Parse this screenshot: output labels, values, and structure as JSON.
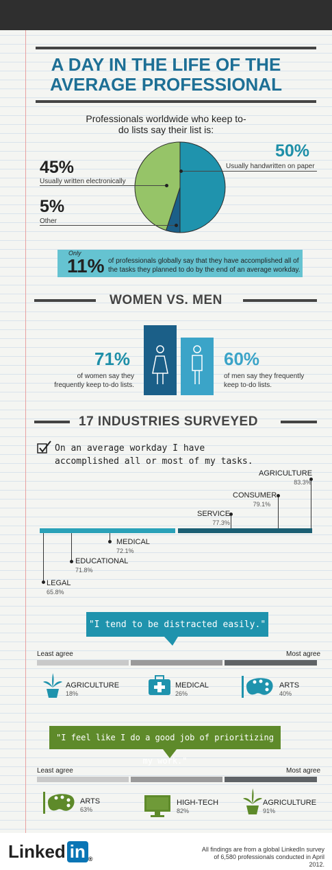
{
  "title": "A DAY IN THE LIFE OF THE AVERAGE PROFESSIONAL",
  "pie": {
    "intro": "Professionals worldwide who keep to-do lists say their list is:",
    "slices": [
      {
        "pct": "50%",
        "label": "Usually handwritten on paper",
        "value": 50,
        "color": "#1f93ad"
      },
      {
        "pct": "45%",
        "label": "Usually written electronically",
        "value": 45,
        "color": "#96c468"
      },
      {
        "pct": "5%",
        "label": "Other",
        "value": 5,
        "color": "#1b5f88"
      }
    ]
  },
  "stat11": {
    "only": "Only",
    "pct": "11%",
    "text": "of professionals globally say that they have accomplished all of the tasks they planned to do by the end of an average workday."
  },
  "gender": {
    "heading": "WOMEN VS. MEN",
    "women_pct": "71%",
    "women_text": "of women say they frequently keep to-do lists.",
    "women_value": 71,
    "men_pct": "60%",
    "men_text": "of men say they frequently keep to-do lists.",
    "men_value": 60
  },
  "industries": {
    "heading": "17 INDUSTRIES SURVEYED",
    "statement": "On an average workday I have accomplished all or most of my tasks.",
    "items": [
      {
        "name": "AGRICULTURE",
        "value": "83.3%"
      },
      {
        "name": "CONSUMER",
        "value": "79.1%"
      },
      {
        "name": "SERVICE",
        "value": "77.3%"
      },
      {
        "name": "MEDICAL",
        "value": "72.1%"
      },
      {
        "name": "EDUCATIONAL",
        "value": "71.8%"
      },
      {
        "name": "LEGAL",
        "value": "65.8%"
      }
    ]
  },
  "distracted": {
    "quote": "\"I tend to be distracted easily.\"",
    "least": "Least agree",
    "most": "Most agree",
    "items": [
      {
        "name": "AGRICULTURE",
        "value": "18%"
      },
      {
        "name": "MEDICAL",
        "value": "26%"
      },
      {
        "name": "ARTS",
        "value": "40%"
      }
    ],
    "color": "#1f93ad"
  },
  "prioritizing": {
    "quote": "\"I feel like I do a good job of prioritizing my work.\"",
    "least": "Least agree",
    "most": "Most agree",
    "items": [
      {
        "name": "ARTS",
        "value": "63%"
      },
      {
        "name": "HIGH-TECH",
        "value": "82%"
      },
      {
        "name": "AGRICULTURE",
        "value": "91%"
      }
    ],
    "color": "#5e8a2a"
  },
  "footer": {
    "logo_text": "Linked",
    "logo_in": "in",
    "note": "All findings are from a global LinkedIn survey of 6,580 professionals conducted in April 2012."
  }
}
